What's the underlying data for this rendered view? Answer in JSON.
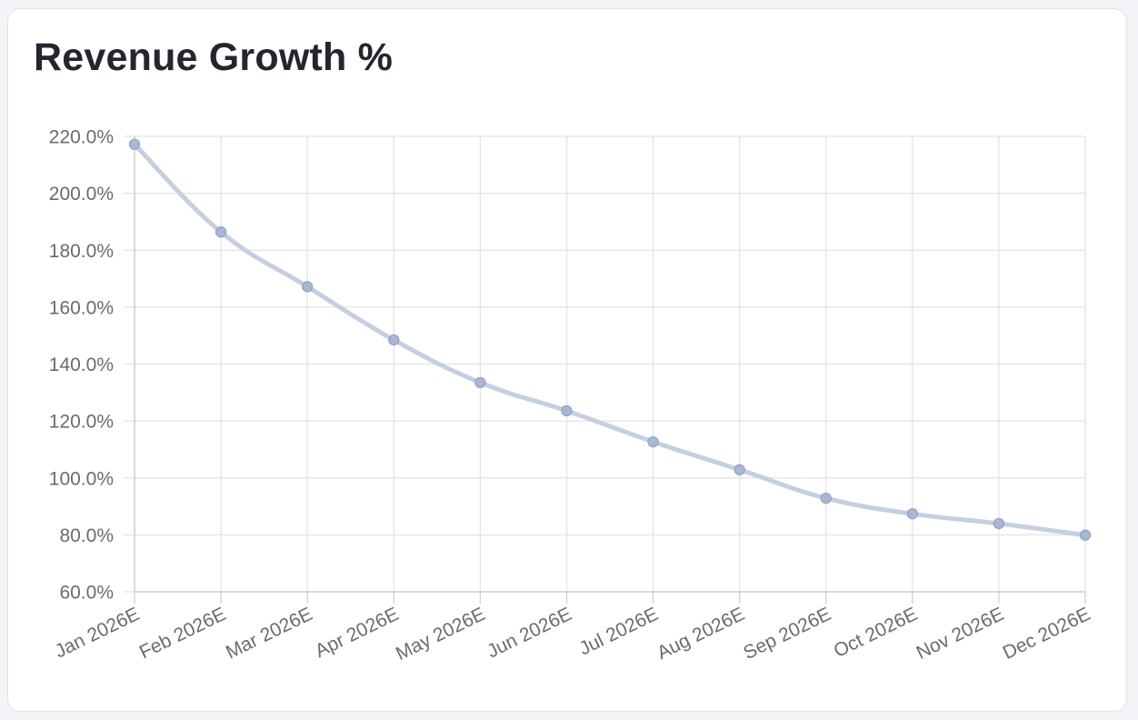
{
  "chart_data": {
    "type": "line",
    "title": "Revenue Growth %",
    "xlabel": "",
    "ylabel": "",
    "categories": [
      "Jan 2026E",
      "Feb 2026E",
      "Mar 2026E",
      "Apr 2026E",
      "May 2026E",
      "Jun 2026E",
      "Jul 2026E",
      "Aug 2026E",
      "Sep 2026E",
      "Oct 2026E",
      "Nov 2026E",
      "Dec 2026E"
    ],
    "series": [
      {
        "values": [
          217.2,
          186.4,
          167.2,
          148.5,
          133.5,
          123.6,
          112.7,
          102.9,
          92.9,
          87.4,
          84.0,
          79.9
        ]
      }
    ],
    "ylim": [
      60,
      220
    ],
    "yticks": [
      60,
      80,
      100,
      120,
      140,
      160,
      180,
      200,
      220
    ],
    "ytick_labels": [
      "60.0%",
      "80.0%",
      "100.0%",
      "120.0%",
      "140.0%",
      "160.0%",
      "180.0%",
      "200.0%",
      "220.0%"
    ],
    "grid": true,
    "legend": "none",
    "colors": {
      "line": "#c5cfe2",
      "point_fill": "#aab7d3",
      "point_stroke": "#93a3c7",
      "grid": "#e3e3e3",
      "axis": "#cfcfcf"
    }
  }
}
